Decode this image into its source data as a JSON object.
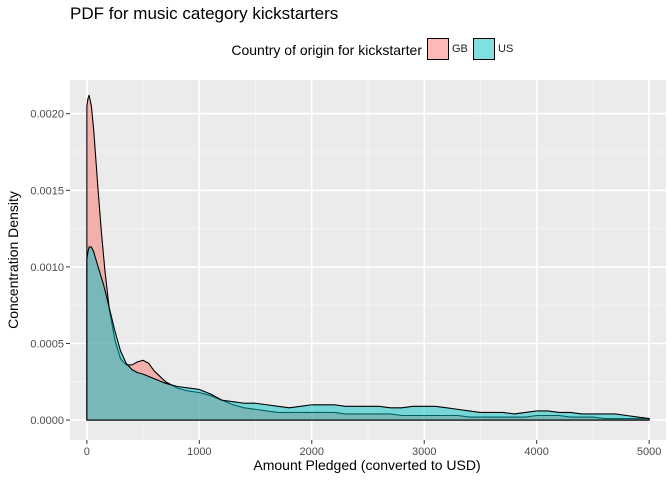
{
  "chart_data": {
    "type": "area",
    "title": "PDF for music category kickstarters",
    "xlabel": "Amount Pledged (converted to USD)",
    "ylabel": "Concentration Density",
    "xlim": [
      -150,
      5150
    ],
    "ylim": [
      -0.00013,
      0.00222
    ],
    "x_ticks": [
      0,
      1000,
      2000,
      3000,
      4000,
      5000
    ],
    "x_tick_labels": [
      "0",
      "1000",
      "2000",
      "3000",
      "4000",
      "5000"
    ],
    "y_ticks": [
      0,
      0.0005,
      0.001,
      0.0015,
      0.002
    ],
    "y_tick_labels": [
      "0.0000",
      "0.0005",
      "0.0010",
      "0.0015",
      "0.0020"
    ],
    "grid": true,
    "legend_title": "Country of origin for kickstarter",
    "legend_position": "top",
    "series": [
      {
        "name": "GB",
        "color": "#F8766D",
        "x": [
          0,
          10,
          20,
          40,
          60,
          80,
          100,
          130,
          160,
          200,
          250,
          300,
          350,
          400,
          450,
          500,
          550,
          600,
          700,
          800,
          900,
          1000,
          1100,
          1200,
          1300,
          1400,
          1500,
          1600,
          1700,
          1800,
          1900,
          2000,
          2100,
          2200,
          2300,
          2400,
          2500,
          2600,
          2700,
          2800,
          2900,
          3000,
          3100,
          3200,
          3300,
          3400,
          3500,
          3600,
          3700,
          3800,
          3900,
          4000,
          4100,
          4200,
          4300,
          4400,
          4500,
          4600,
          4700,
          4800,
          4900,
          5000
        ],
        "y": [
          0.00205,
          0.0021,
          0.00212,
          0.00205,
          0.0019,
          0.0017,
          0.0015,
          0.00122,
          0.00098,
          0.00072,
          0.00052,
          0.0004,
          0.00036,
          0.00036,
          0.00038,
          0.00039,
          0.00037,
          0.00032,
          0.00025,
          0.00021,
          0.00019,
          0.00018,
          0.00016,
          0.00013,
          0.0001,
          8e-05,
          7e-05,
          6e-05,
          5e-05,
          5e-05,
          5e-05,
          5e-05,
          5e-05,
          5e-05,
          4e-05,
          4e-05,
          4e-05,
          4e-05,
          4e-05,
          3e-05,
          3e-05,
          3e-05,
          3e-05,
          3e-05,
          3e-05,
          2e-05,
          2e-05,
          2e-05,
          2e-05,
          2e-05,
          2e-05,
          3e-05,
          3e-05,
          3e-05,
          2e-05,
          2e-05,
          2e-05,
          1e-05,
          1e-05,
          1e-05,
          1e-05,
          1e-05
        ]
      },
      {
        "name": "US",
        "color": "#00BFC4",
        "x": [
          0,
          10,
          20,
          40,
          60,
          80,
          100,
          150,
          200,
          250,
          300,
          350,
          400,
          450,
          500,
          600,
          700,
          800,
          900,
          1000,
          1100,
          1200,
          1300,
          1400,
          1500,
          1600,
          1700,
          1800,
          1900,
          2000,
          2100,
          2200,
          2300,
          2400,
          2500,
          2600,
          2700,
          2800,
          2900,
          3000,
          3100,
          3200,
          3300,
          3400,
          3500,
          3600,
          3700,
          3800,
          3900,
          4000,
          4100,
          4200,
          4300,
          4400,
          4500,
          4600,
          4700,
          4800,
          4900,
          5000
        ],
        "y": [
          0.00105,
          0.0011,
          0.00113,
          0.00113,
          0.0011,
          0.00105,
          0.001,
          0.00088,
          0.00073,
          0.00058,
          0.00045,
          0.00037,
          0.00033,
          0.00031,
          0.0003,
          0.00027,
          0.00024,
          0.00022,
          0.00021,
          0.0002,
          0.00017,
          0.00013,
          0.00012,
          0.00011,
          0.00011,
          0.0001,
          9e-05,
          8e-05,
          9e-05,
          0.0001,
          0.0001,
          0.0001,
          9e-05,
          9e-05,
          9e-05,
          9e-05,
          8e-05,
          8e-05,
          9e-05,
          9e-05,
          9e-05,
          8e-05,
          7e-05,
          6e-05,
          5e-05,
          5e-05,
          5e-05,
          4e-05,
          5e-05,
          6e-05,
          6e-05,
          5e-05,
          5e-05,
          4e-05,
          4e-05,
          4e-05,
          4e-05,
          3e-05,
          2e-05,
          1e-05
        ]
      }
    ]
  }
}
